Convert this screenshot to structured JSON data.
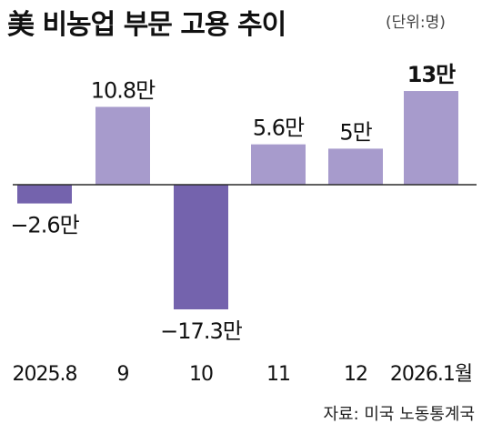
{
  "chart_data": {
    "type": "bar",
    "title": "美 비농업 부문 고용 추이",
    "unit": "(단위:명)",
    "categories": [
      "2025.8",
      "9",
      "10",
      "11",
      "12",
      "2026.1월"
    ],
    "values": [
      -2.6,
      10.8,
      -17.3,
      5.6,
      5,
      13
    ],
    "value_labels": [
      "−2.6만",
      "10.8만",
      "−17.3만",
      "5.6만",
      "5만",
      "13만"
    ],
    "highlight_index": 5,
    "ylim": [
      -17.3,
      13
    ],
    "grid": false,
    "legend": "none",
    "source": "자료: 미국 노동통계국"
  },
  "colors": {
    "positive_bar": "#a79bcc",
    "negative_bar": "#7463ad",
    "baseline": "#2a2a2a"
  }
}
